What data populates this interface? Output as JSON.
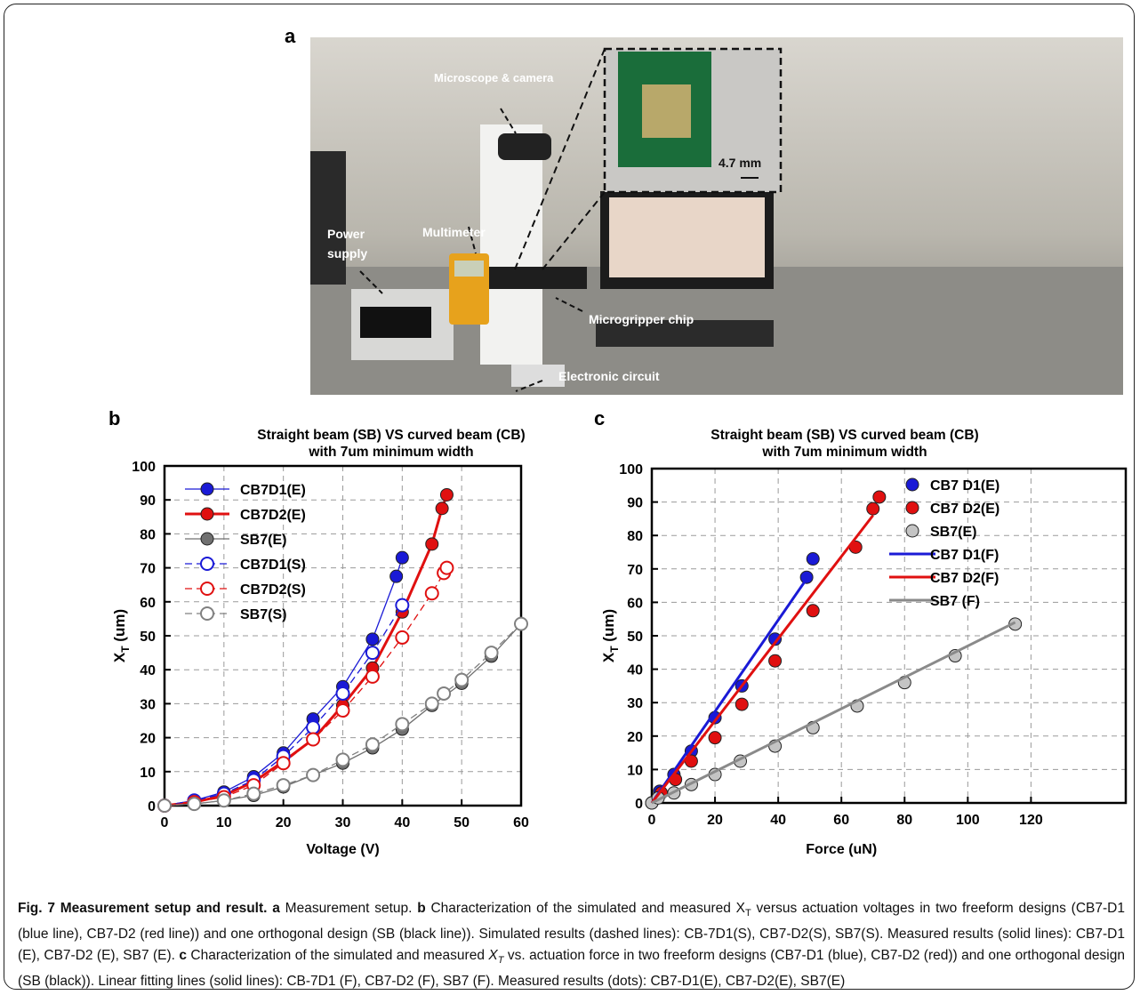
{
  "photo": {
    "panel_label": "a",
    "microscope": "Microscope & camera",
    "scale": "4.7 mm",
    "power_supply": [
      "Power",
      "supply"
    ],
    "multimeter": "Multimeter",
    "chip": "Microgripper chip",
    "circuit": "Electronic circuit"
  },
  "chart_data": [
    {
      "type": "line",
      "panel_label": "b",
      "title": [
        "Straight beam (SB) VS curved beam (CB)",
        "with 7um minimum width"
      ],
      "xlabel": "Voltage (V)",
      "ylabel": {
        "symbol": "X",
        "subscript": "T",
        "unit": "(um)"
      },
      "xlim": [
        0,
        60
      ],
      "xticks": [
        0,
        10,
        20,
        30,
        40,
        50,
        60
      ],
      "ylim": [
        0,
        100
      ],
      "yticks": [
        0,
        10,
        20,
        30,
        40,
        50,
        60,
        70,
        80,
        90,
        100
      ],
      "grid": true,
      "legend": "upper left",
      "series": [
        {
          "name": "CB7D1(E)",
          "color": "#1a1ad6",
          "line_style": "solid",
          "line_width": 1.3,
          "marker": "filled",
          "x": [
            0,
            5,
            10,
            15,
            20,
            25,
            30,
            35,
            39,
            40
          ],
          "values": [
            0,
            1.5,
            4,
            8.5,
            15.5,
            25.5,
            35,
            49,
            67.5,
            73
          ]
        },
        {
          "name": "CB7D2(E)",
          "color": "#e01010",
          "line_style": "solid",
          "line_width": 3,
          "marker": "filled",
          "x": [
            0,
            5,
            10,
            15,
            20,
            25,
            30,
            35,
            40,
            45,
            46.7,
            47.5
          ],
          "values": [
            0,
            1,
            3,
            7,
            13,
            19.5,
            29.5,
            40.5,
            57,
            77,
            87.5,
            91.5
          ]
        },
        {
          "name": "SB7(E)",
          "color": "#707070",
          "line_style": "solid",
          "line_width": 1.3,
          "marker": "filled",
          "x": [
            0,
            5,
            10,
            15,
            20,
            25,
            30,
            35,
            40,
            45,
            50,
            55,
            60
          ],
          "values": [
            0,
            0.5,
            1.5,
            3,
            5.5,
            9,
            12.5,
            17,
            22.5,
            29.5,
            36,
            44,
            53.5
          ]
        },
        {
          "name": "CB7D1(S)",
          "color": "#1a1ad6",
          "line_style": "dashed",
          "line_width": 1.3,
          "marker": "open",
          "x": [
            0,
            5,
            10,
            15,
            20,
            25,
            30,
            35,
            40
          ],
          "values": [
            0,
            1.5,
            3.5,
            7.5,
            14.5,
            23,
            33,
            45,
            59
          ]
        },
        {
          "name": "CB7D2(S)",
          "color": "#e01010",
          "line_style": "dashed",
          "line_width": 1.3,
          "marker": "open",
          "x": [
            0,
            5,
            10,
            15,
            20,
            25,
            30,
            35,
            40,
            45,
            47,
            47.5
          ],
          "values": [
            0,
            1,
            2.5,
            6,
            12.5,
            19.5,
            28,
            38,
            49.5,
            62.5,
            68.5,
            70
          ]
        },
        {
          "name": "SB7(S)",
          "color": "#808080",
          "line_style": "dashed",
          "line_width": 1.3,
          "marker": "open",
          "x": [
            0,
            5,
            10,
            15,
            20,
            25,
            30,
            35,
            40,
            45,
            47,
            50,
            55,
            60
          ],
          "values": [
            0,
            0.5,
            1.5,
            3.5,
            6,
            9,
            13.5,
            18,
            24,
            30,
            33,
            37,
            45,
            53.5
          ]
        }
      ]
    },
    {
      "type": "scatter",
      "panel_label": "c",
      "title": [
        "Straight beam (SB) VS curved beam (CB)",
        "with 7um minimum width"
      ],
      "xlabel": "Force (uN)",
      "ylabel": {
        "symbol": "X",
        "subscript": "T",
        "unit": "(um)"
      },
      "xlim": [
        0,
        150
      ],
      "xticks": [
        0,
        20,
        40,
        60,
        80,
        100,
        120
      ],
      "ylim": [
        0,
        100
      ],
      "yticks": [
        0,
        10,
        20,
        30,
        40,
        50,
        60,
        70,
        80,
        90,
        100
      ],
      "grid": true,
      "legend": "upper right",
      "series": [
        {
          "name": "CB7 D1(E)",
          "color": "#1a1ad6",
          "marker": "filled",
          "x": [
            0,
            2.5,
            7,
            12.5,
            20,
            28.5,
            39,
            49,
            51
          ],
          "values": [
            0,
            3.5,
            8.5,
            15.5,
            25.5,
            35,
            49,
            67.5,
            73
          ]
        },
        {
          "name": "CB7 D2(E)",
          "color": "#e01010",
          "marker": "filled",
          "x": [
            0,
            3,
            7.5,
            12.5,
            20,
            28.5,
            39,
            51,
            64.5,
            70,
            72
          ],
          "values": [
            0,
            3,
            7,
            12.5,
            19.5,
            29.5,
            42.5,
            57.5,
            76.5,
            88,
            91.5
          ]
        },
        {
          "name": "SB7(E)",
          "color": "#c4c4c4",
          "marker": "filled",
          "x": [
            0,
            2,
            7,
            12.5,
            20,
            28,
            39,
            51,
            65,
            80,
            96,
            115
          ],
          "values": [
            0,
            1.5,
            3,
            5.5,
            8.5,
            12.5,
            17,
            22.5,
            29,
            36,
            44,
            53.5
          ]
        },
        {
          "name": "CB7 D1(F)",
          "color": "#1a1ad6",
          "line_style": "solid",
          "line_width": 3,
          "x": [
            0,
            49
          ],
          "values": [
            0,
            67
          ]
        },
        {
          "name": "CB7 D2(F)",
          "color": "#e01010",
          "line_style": "solid",
          "line_width": 3,
          "x": [
            0,
            70
          ],
          "values": [
            0,
            86
          ]
        },
        {
          "name": "SB7 (F)",
          "color": "#8a8a8a",
          "line_style": "solid",
          "line_width": 3,
          "x": [
            0,
            115
          ],
          "values": [
            0,
            54
          ]
        }
      ]
    }
  ],
  "caption": [
    {
      "text": "Fig. 7 Measurement setup and result.",
      "style": "bold"
    },
    {
      "text": " a",
      "style": "bold"
    },
    {
      "text": " Measurement setup. "
    },
    {
      "text": "b",
      "style": "bold"
    },
    {
      "text": " Characterization of the simulated and measured X"
    },
    {
      "text": "T",
      "style": "sub"
    },
    {
      "text": " versus actuation voltages in two freeform designs (CB7-D1 (blue line), CB7-D2 (red line)) and one orthogonal design (SB (black line)). Simulated results (dashed lines): CB-7D1(S), CB7-D2(S), SB7(S). Measured results (solid lines): CB7-D1 (E), CB7-D2 (E), SB7 (E). "
    },
    {
      "text": "c",
      "style": "bold"
    },
    {
      "text": " Characterization of the simulated and measured "
    },
    {
      "text": "X",
      "style": "italic"
    },
    {
      "text": "T",
      "style": "italic-sub"
    },
    {
      "text": " vs. actuation force in two freeform designs (CB7-D1 (blue), CB7-D2 (red)) and one orthogonal design (SB (black)). Linear fitting lines (solid lines): CB-7D1 (F), CB7-D2 (F), SB7 (F). Measured results (dots): CB7-D1(E), CB7-D2(E), SB7(E)"
    }
  ]
}
